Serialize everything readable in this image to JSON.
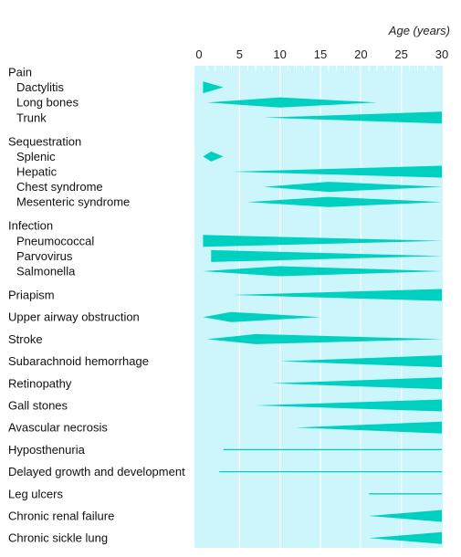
{
  "chart_data": {
    "type": "range-wedge",
    "x_axis_label": "Age (years)",
    "xlim": [
      0,
      30
    ],
    "x_ticks": [
      0,
      5,
      10,
      15,
      20,
      25,
      30
    ],
    "colors": {
      "band": "#ccf6fb",
      "mark": "#00d0c0",
      "grid": "#ffffff"
    },
    "rows": [
      {
        "label": "Pain",
        "indent": false,
        "shape": "none"
      },
      {
        "label": "Dactylitis",
        "indent": true,
        "shape": "wedge",
        "start": 0.5,
        "end": 3,
        "peak_at": 0.5
      },
      {
        "label": "Long bones",
        "indent": true,
        "shape": "diamond",
        "start": 1,
        "end": 22,
        "peak_at": 10
      },
      {
        "label": "Trunk",
        "indent": true,
        "shape": "wedge",
        "start": 8,
        "end": 30,
        "peak_at": 30
      },
      {
        "label": "Sequestration",
        "indent": false,
        "shape": "none"
      },
      {
        "label": "Splenic",
        "indent": true,
        "shape": "diamond",
        "start": 0.5,
        "end": 3,
        "peak_at": 1.5
      },
      {
        "label": "Hepatic",
        "indent": true,
        "shape": "wedge",
        "start": 4,
        "end": 30,
        "peak_at": 30
      },
      {
        "label": "Chest syndrome",
        "indent": true,
        "shape": "diamond",
        "start": 8,
        "end": 30,
        "peak_at": 16
      },
      {
        "label": "Mesenteric syndrome",
        "indent": true,
        "shape": "diamond",
        "start": 6,
        "end": 30,
        "peak_at": 16
      },
      {
        "label": "Infection",
        "indent": false,
        "shape": "none"
      },
      {
        "label": "Pneumococcal",
        "indent": true,
        "shape": "wedge",
        "start": 0.5,
        "end": 30,
        "peak_at": 0.5
      },
      {
        "label": "Parvovirus",
        "indent": true,
        "shape": "wedge",
        "start": 1.5,
        "end": 30,
        "peak_at": 1.5
      },
      {
        "label": "Salmonella",
        "indent": true,
        "shape": "diamond",
        "start": 0.5,
        "end": 30,
        "peak_at": 10
      },
      {
        "label": "Priapism",
        "indent": false,
        "shape": "wedge",
        "start": 4,
        "end": 30,
        "peak_at": 30
      },
      {
        "label": "Upper airway obstruction",
        "indent": false,
        "shape": "diamond",
        "start": 0.5,
        "end": 15,
        "peak_at": 4
      },
      {
        "label": "Stroke",
        "indent": false,
        "shape": "diamond",
        "start": 1,
        "end": 30,
        "peak_at": 7
      },
      {
        "label": "Subarachnoid hemorrhage",
        "indent": false,
        "shape": "wedge",
        "start": 10,
        "end": 30,
        "peak_at": 30
      },
      {
        "label": "Retinopathy",
        "indent": false,
        "shape": "wedge",
        "start": 9,
        "end": 30,
        "peak_at": 30
      },
      {
        "label": "Gall stones",
        "indent": false,
        "shape": "wedge",
        "start": 7,
        "end": 30,
        "peak_at": 30
      },
      {
        "label": "Avascular necrosis",
        "indent": false,
        "shape": "wedge",
        "start": 12,
        "end": 30,
        "peak_at": 30
      },
      {
        "label": "Hyposthenuria",
        "indent": false,
        "shape": "line",
        "start": 3,
        "end": 30
      },
      {
        "label": "Delayed growth and development",
        "indent": false,
        "shape": "line",
        "start": 2.5,
        "end": 30
      },
      {
        "label": "Leg ulcers",
        "indent": false,
        "shape": "line",
        "start": 21,
        "end": 30
      },
      {
        "label": "Chronic renal failure",
        "indent": false,
        "shape": "wedge",
        "start": 21,
        "end": 30,
        "peak_at": 30
      },
      {
        "label": "Chronic sickle lung",
        "indent": false,
        "shape": "wedge",
        "start": 21,
        "end": 30,
        "peak_at": 30
      }
    ]
  }
}
